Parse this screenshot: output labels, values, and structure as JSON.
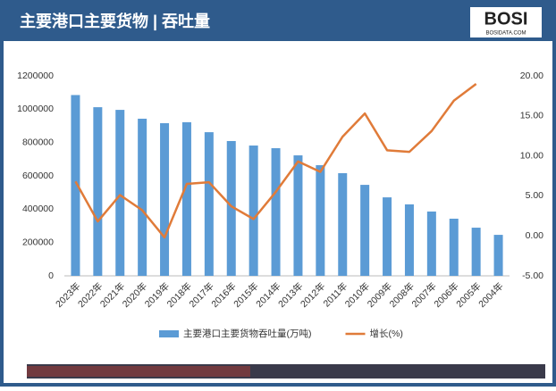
{
  "header": {
    "title": "主要港口主要货物 | 吞吐量",
    "logo": "BOSI",
    "logo_sub": "BOSIDATA.COM"
  },
  "chart_data": {
    "type": "bar",
    "categories": [
      "2023年",
      "2022年",
      "2021年",
      "2020年",
      "2019年",
      "2018年",
      "2017年",
      "2016年",
      "2015年",
      "2014年",
      "2013年",
      "2012年",
      "2011年",
      "2010年",
      "2009年",
      "2008年",
      "2007年",
      "2006年",
      "2005年",
      "2004年"
    ],
    "series": [
      {
        "name": "主要港口主要货物吞吐量(万吨)",
        "type": "bar",
        "color": "#5b9bd5",
        "values": [
          1085000,
          1012000,
          996000,
          943000,
          916000,
          922000,
          862000,
          809000,
          782000,
          766000,
          723000,
          664000,
          616000,
          546000,
          471000,
          429000,
          386000,
          343000,
          289000,
          246000
        ]
      },
      {
        "name": "增长(%)",
        "type": "line",
        "axis": "y2",
        "color": "#e07b39",
        "values": [
          6.8,
          1.8,
          5.1,
          3.2,
          -0.2,
          6.5,
          6.7,
          3.7,
          2.1,
          5.5,
          9.3,
          8.0,
          12.4,
          15.3,
          10.7,
          10.5,
          13.1,
          16.9,
          19.0,
          null
        ]
      }
    ],
    "ylim": [
      0,
      1200000
    ],
    "yticks": [
      0,
      200000,
      400000,
      600000,
      800000,
      1000000,
      1200000
    ],
    "y2lim": [
      -5,
      20
    ],
    "y2ticks": [
      {
        "value": -5,
        "label": "-5.00"
      },
      {
        "value": 0,
        "label": "0.00"
      },
      {
        "value": 5,
        "label": "5.00"
      },
      {
        "value": 10,
        "label": "10.00"
      },
      {
        "value": 15,
        "label": "15.00"
      },
      {
        "value": 20,
        "label": "20.00"
      }
    ],
    "grid": false,
    "legend": "bottom"
  }
}
